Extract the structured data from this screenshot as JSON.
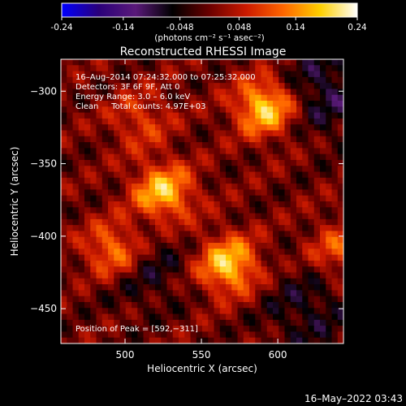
{
  "colorbar": {
    "ticks": [
      "-0.24",
      "-0.14",
      "-0.048",
      "0.048",
      "0.14",
      "0.24"
    ],
    "tick_values": [
      -0.24,
      -0.14,
      -0.048,
      0.048,
      0.14,
      0.24
    ],
    "range": [
      -0.24,
      0.24
    ],
    "units": "(photons cm⁻² s⁻¹ asec⁻²)",
    "colors": [
      "#0000ff",
      "#2a007a",
      "#5a1a7a",
      "#000000",
      "#6a0000",
      "#cc1a00",
      "#ff6600",
      "#ffd000",
      "#ffffff"
    ]
  },
  "chart_data": {
    "type": "heatmap",
    "title": "Reconstructed RHESSI Image",
    "xlabel": "Heliocentric X (arcsec)",
    "ylabel": "Heliocentric Y (arcsec)",
    "xlim": [
      458,
      643
    ],
    "ylim": [
      -474,
      -278
    ],
    "x_ticks": [
      500,
      550,
      600
    ],
    "x_tick_labels": [
      "500",
      "550",
      "600"
    ],
    "y_ticks": [
      -300,
      -350,
      -400,
      -450
    ],
    "y_tick_labels": [
      "−300",
      "−350",
      "−400",
      "−450"
    ],
    "grid": false,
    "annotations": [
      "16–Aug–2014 07:24:32.000 to 07:25:32.000",
      "Detectors: 3F 6F 9F, Att 0",
      "Energy Range: 3.0 – 6.0 keV",
      "Clean     Total counts: 4.97E+03"
    ],
    "peak_label": "Position of Peak = [592,−311]",
    "peak": [
      592,
      -311
    ],
    "sources": [
      {
        "x": 592,
        "y": -311,
        "value": 0.24
      },
      {
        "x": 525,
        "y": -370,
        "value": 0.22
      },
      {
        "x": 568,
        "y": -420,
        "value": 0.23
      },
      {
        "x": 493,
        "y": -410,
        "value": 0.2
      },
      {
        "x": 640,
        "y": -410,
        "value": 0.14
      },
      {
        "x": 510,
        "y": -320,
        "value": 0.12
      }
    ]
  },
  "footer": {
    "timestamp": "16–May–2022 03:43"
  }
}
